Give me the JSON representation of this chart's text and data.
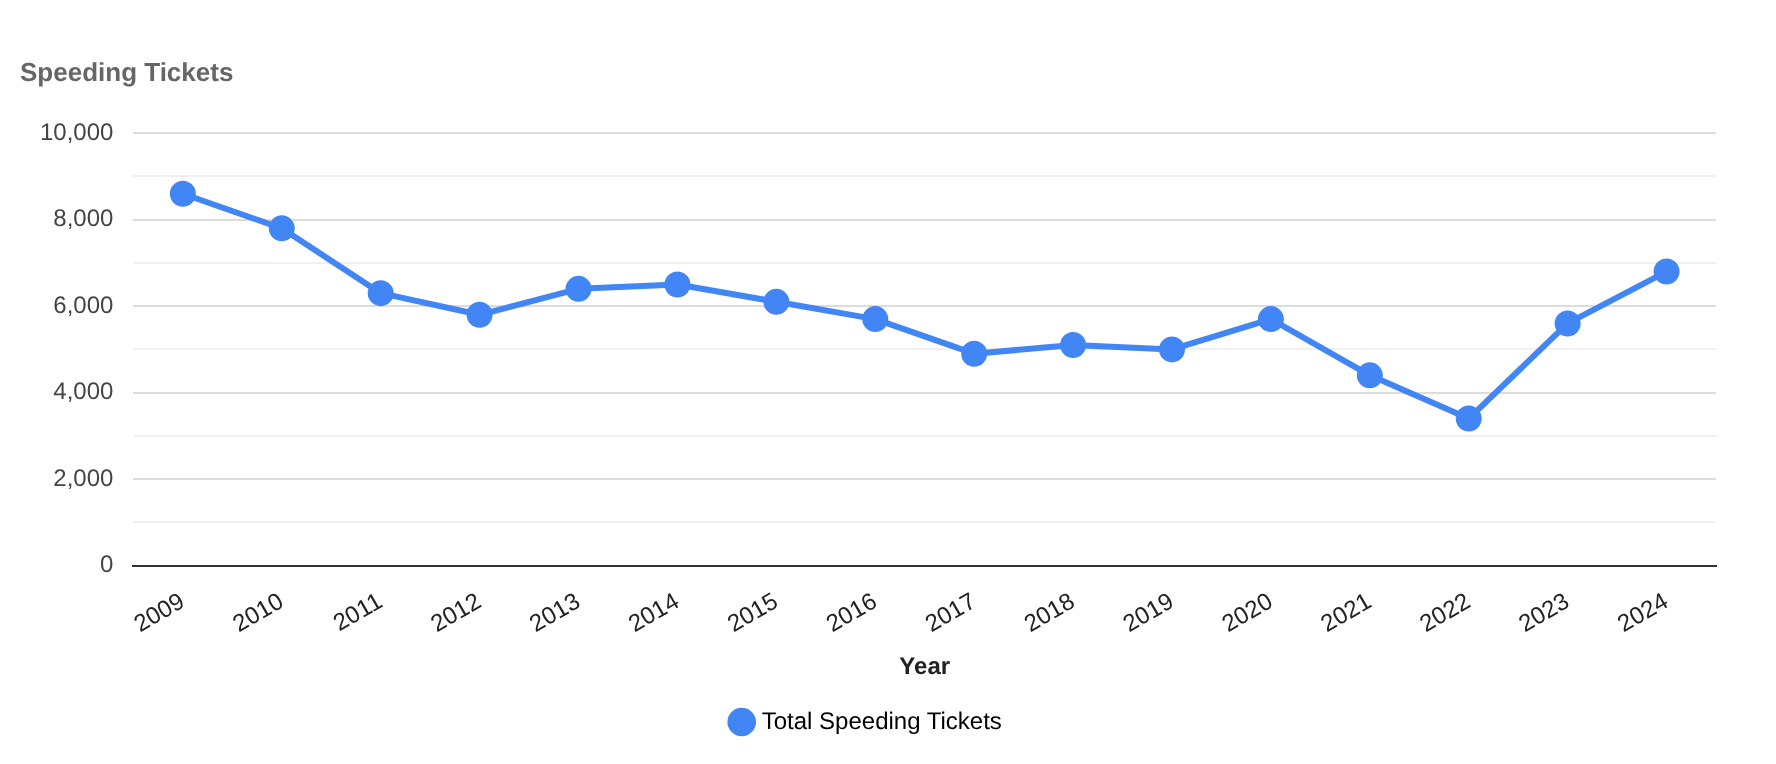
{
  "chart_data": {
    "type": "line",
    "title": "Speeding Tickets",
    "xlabel": "Year",
    "categories": [
      "2009",
      "2010",
      "2011",
      "2012",
      "2013",
      "2014",
      "2015",
      "2016",
      "2017",
      "2018",
      "2019",
      "2020",
      "2021",
      "2022",
      "2023",
      "2024"
    ],
    "series": [
      {
        "name": "Total Speeding Tickets",
        "color": "#4285f4",
        "values": [
          8600,
          7800,
          6300,
          5800,
          6400,
          6500,
          6100,
          5700,
          4900,
          5100,
          5000,
          5700,
          4400,
          3400,
          5600,
          6800
        ]
      }
    ],
    "ylim": [
      0,
      10000
    ],
    "yticks": [
      {
        "value": 0,
        "label": "0"
      },
      {
        "value": 1000,
        "label": null
      },
      {
        "value": 2000,
        "label": "2,000"
      },
      {
        "value": 3000,
        "label": null
      },
      {
        "value": 4000,
        "label": "4,000"
      },
      {
        "value": 5000,
        "label": null
      },
      {
        "value": 6000,
        "label": "6,000"
      },
      {
        "value": 7000,
        "label": null
      },
      {
        "value": 8000,
        "label": "8,000"
      },
      {
        "value": 9000,
        "label": null
      },
      {
        "value": 10000,
        "label": "10,000"
      }
    ],
    "grid": "y",
    "legend": "bottom",
    "marker": "circle",
    "line_style": "solid"
  }
}
